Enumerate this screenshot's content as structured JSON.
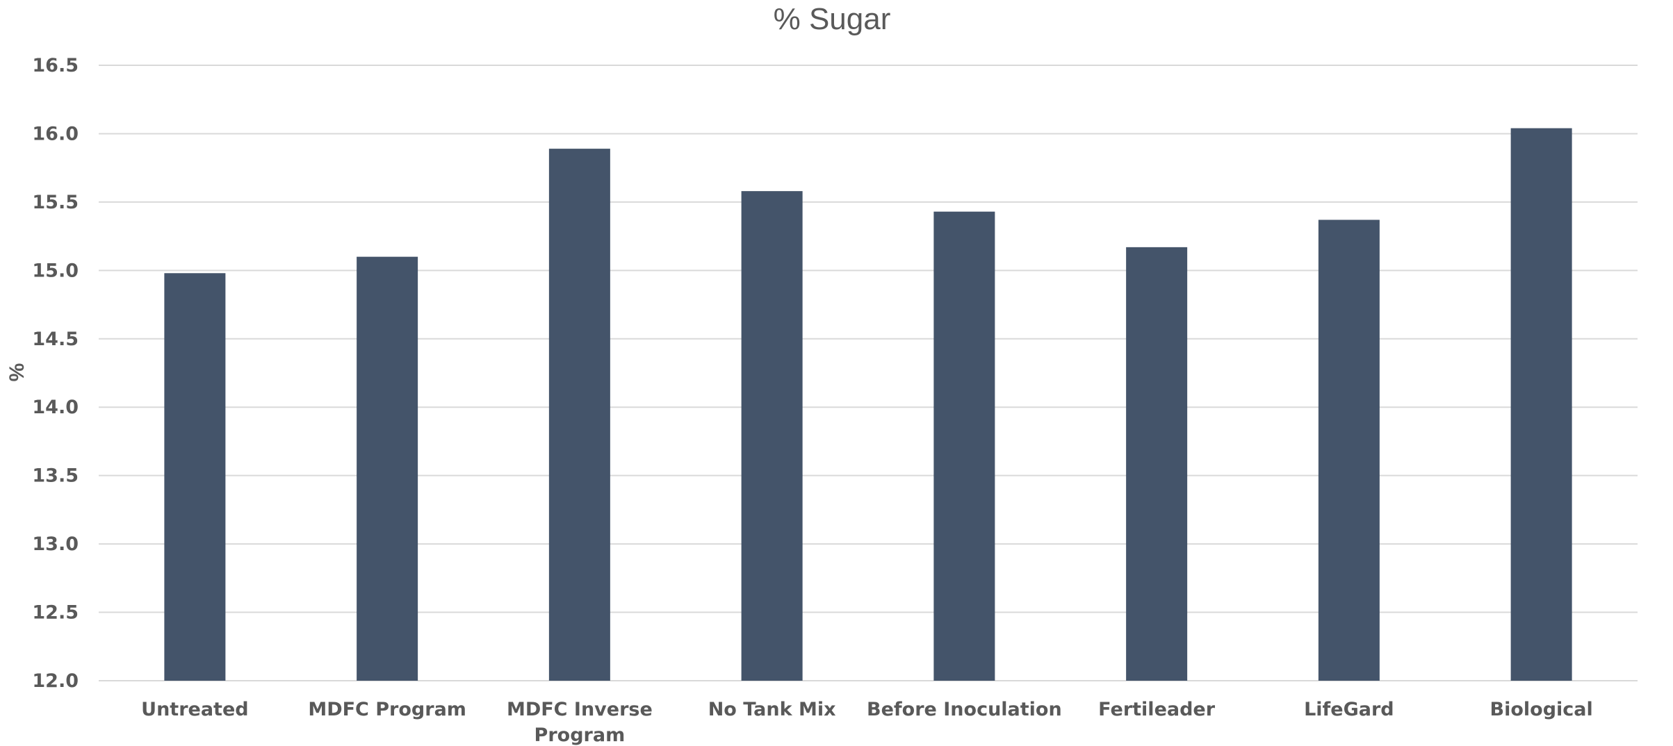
{
  "chart_data": {
    "type": "bar",
    "title": "% Sugar",
    "xlabel": "",
    "ylabel": "%",
    "categories": [
      [
        "Untreated"
      ],
      [
        "MDFC Program"
      ],
      [
        "MDFC Inverse",
        "Program"
      ],
      [
        "No Tank Mix"
      ],
      [
        "Before Inoculation"
      ],
      [
        "Fertileader"
      ],
      [
        "LifeGard"
      ],
      [
        "Biological"
      ]
    ],
    "series": [
      {
        "values": [
          14.98,
          15.1,
          15.89,
          15.58,
          15.43,
          15.17,
          15.37,
          16.04
        ]
      }
    ],
    "ylim": [
      12.0,
      16.5
    ],
    "yticks": [
      "12.0",
      "12.5",
      "13.0",
      "13.5",
      "14.0",
      "14.5",
      "15.0",
      "15.5",
      "16.0",
      "16.5"
    ],
    "grid": true,
    "legend": "none",
    "colors": {
      "bar": "#44546a",
      "grid": "#d9d9d9",
      "text": "#595959"
    }
  }
}
